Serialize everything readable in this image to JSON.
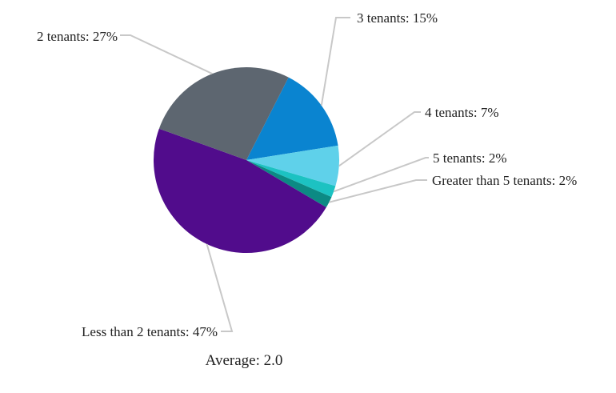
{
  "chart_data": {
    "type": "pie",
    "start_angle_deg": -63,
    "direction": "clockwise",
    "slices": [
      {
        "label": "3 tenants: 15%",
        "category": "3 tenants",
        "value": 15,
        "color": "#0a84d0"
      },
      {
        "label": "4 tenants: 7%",
        "category": "4 tenants",
        "value": 7,
        "color": "#5fd1ea"
      },
      {
        "label": "5 tenants: 2%",
        "category": "5 tenants",
        "value": 2,
        "color": "#1cc2c2"
      },
      {
        "label": "Greater than 5 tenants: 2%",
        "category": "Greater than 5 tenants",
        "value": 2,
        "color": "#0c8a84"
      },
      {
        "label": "Less than 2 tenants: 47%",
        "category": "Less than 2 tenants",
        "value": 47,
        "color": "#510c8c"
      },
      {
        "label": "2 tenants: 27%",
        "category": "2 tenants",
        "value": 27,
        "color": "#5d6670"
      }
    ],
    "leader_line_color": "#c8c8c8"
  },
  "footer": {
    "average_label": "Average: 2.0"
  }
}
